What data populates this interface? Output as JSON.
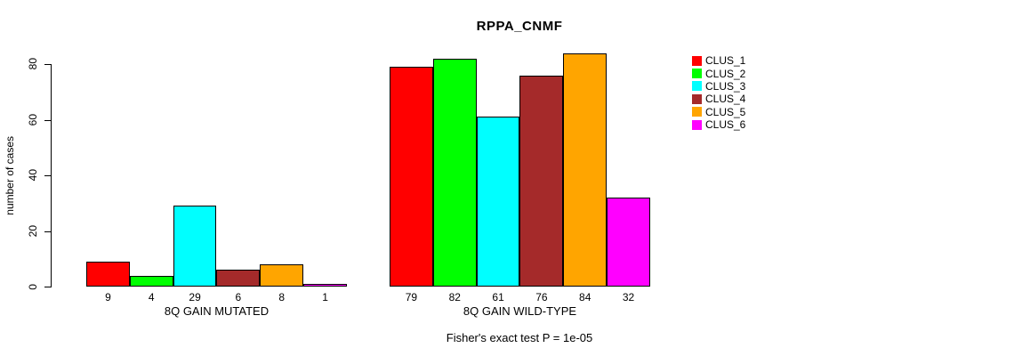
{
  "title": "RPPA_CNMF",
  "footer": "Fisher's exact test P = 1e-05",
  "y_axis": {
    "label": "number of cases",
    "ticks": [
      0,
      20,
      40,
      60,
      80
    ]
  },
  "legend": [
    {
      "label": "CLUS_1",
      "color": "#FF0000"
    },
    {
      "label": "CLUS_2",
      "color": "#00FF00"
    },
    {
      "label": "CLUS_3",
      "color": "#00FFFF"
    },
    {
      "label": "CLUS_4",
      "color": "#A52A2A"
    },
    {
      "label": "CLUS_5",
      "color": "#FFA500"
    },
    {
      "label": "CLUS_6",
      "color": "#FF00FF"
    }
  ],
  "chart_data": {
    "type": "bar",
    "title": "RPPA_CNMF",
    "ylabel": "number of cases",
    "xlabel": "",
    "ylim": [
      0,
      80
    ],
    "yticks": [
      0,
      20,
      40,
      60,
      80
    ],
    "grid": false,
    "legend_position": "right",
    "categories": [
      "CLUS_1",
      "CLUS_2",
      "CLUS_3",
      "CLUS_4",
      "CLUS_5",
      "CLUS_6"
    ],
    "series_colors": [
      "#FF0000",
      "#00FF00",
      "#00FFFF",
      "#A52A2A",
      "#FFA500",
      "#FF00FF"
    ],
    "groups": [
      {
        "label": "8Q GAIN MUTATED",
        "values": [
          9,
          4,
          29,
          6,
          8,
          1
        ]
      },
      {
        "label": "8Q GAIN WILD-TYPE",
        "values": [
          79,
          82,
          61,
          76,
          84,
          32
        ]
      }
    ],
    "annotation": "Fisher's exact test P = 1e-05"
  }
}
